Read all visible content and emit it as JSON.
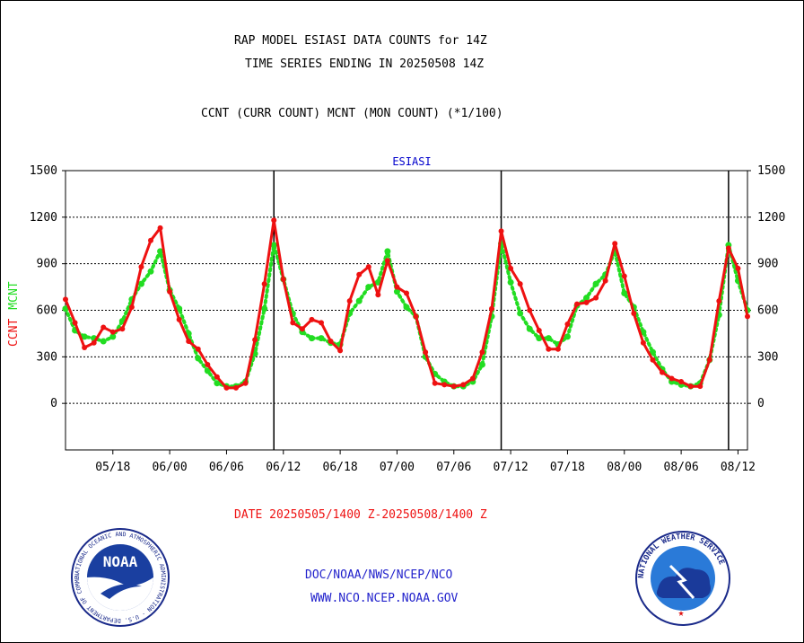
{
  "header": {
    "title_line1": "RAP MODEL ESIASI DATA COUNTS for 14Z",
    "title_line2": "TIME SERIES ENDING IN 20250508 14Z",
    "subtitle": "CCNT (CURR COUNT) MCNT (MON COUNT) (*1/100)"
  },
  "footer": {
    "date_range": "DATE 20250505/1400 Z-20250508/1400 Z",
    "org_line": "DOC/NOAA/NWS/NCEP/NCO",
    "url_line": "WWW.NCO.NCEP.NOAA.GOV"
  },
  "logos": {
    "noaa_text": "NOAA",
    "noaa_ring_text": "NATIONAL OCEANIC AND ATMOSPHERIC ADMINISTRATION · U.S. DEPARTMENT OF COMMERCE ·",
    "nws_ring_text": "NATIONAL WEATHER SERVICE"
  },
  "colors": {
    "ccnt": "#ee1111",
    "mcnt": "#22dd22",
    "title_blue": "#0000cc",
    "footer_red": "#ee1111",
    "footer_blue": "#2222cc"
  },
  "chart_data": {
    "type": "line",
    "title": "ESIASI",
    "ylabel_ccnt": "CCNT",
    "ylabel_mcnt": "MCNT",
    "ylim": [
      -300,
      1500
    ],
    "yticks": [
      1500,
      1200,
      900,
      600,
      300,
      0
    ],
    "ytick_labels": [
      "1500",
      "1200",
      "900",
      "600",
      "300",
      "0"
    ],
    "xlim": [
      0,
      72
    ],
    "xticks": [
      5,
      11,
      17,
      23,
      29,
      35,
      41,
      47,
      53,
      59,
      65,
      71
    ],
    "xtick_labels": [
      "05/18",
      "06/00",
      "06/06",
      "06/12",
      "06/18",
      "07/00",
      "07/06",
      "07/12",
      "07/18",
      "08/00",
      "08/06",
      "08/12"
    ],
    "day_boundaries": [
      22,
      46,
      70
    ],
    "grid": true,
    "series": [
      {
        "name": "CCNT",
        "style": "solid",
        "values": [
          670,
          520,
          360,
          390,
          490,
          460,
          480,
          620,
          880,
          1050,
          1130,
          720,
          540,
          400,
          350,
          250,
          170,
          100,
          100,
          130,
          410,
          770,
          1180,
          800,
          520,
          480,
          540,
          520,
          400,
          340,
          660,
          830,
          880,
          700,
          920,
          750,
          710,
          560,
          330,
          130,
          120,
          110,
          120,
          160,
          330,
          610,
          1110,
          870,
          770,
          600,
          470,
          350,
          350,
          510,
          640,
          650,
          680,
          790,
          1030,
          820,
          580,
          390,
          280,
          200,
          160,
          140,
          110,
          110,
          280,
          660,
          1000,
          870,
          560
        ]
      },
      {
        "name": "MCNT",
        "style": "dotted",
        "values": [
          610,
          470,
          430,
          420,
          400,
          430,
          530,
          670,
          770,
          850,
          980,
          730,
          610,
          450,
          290,
          210,
          130,
          110,
          110,
          140,
          320,
          610,
          1020,
          800,
          580,
          460,
          420,
          420,
          390,
          380,
          580,
          660,
          750,
          780,
          980,
          720,
          620,
          560,
          300,
          190,
          140,
          110,
          110,
          140,
          250,
          560,
          1030,
          780,
          580,
          480,
          420,
          420,
          380,
          430,
          630,
          680,
          770,
          830,
          980,
          710,
          620,
          460,
          330,
          220,
          140,
          120,
          110,
          130,
          280,
          570,
          1020,
          790,
          600
        ]
      }
    ]
  }
}
